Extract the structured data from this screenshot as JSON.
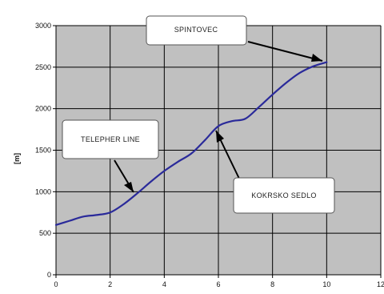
{
  "chart_data": {
    "type": "line",
    "title": "",
    "xlabel": "",
    "ylabel": "[m]",
    "xlim": [
      0,
      12
    ],
    "ylim": [
      0,
      3000
    ],
    "x_ticks": [
      0,
      2,
      4,
      6,
      8,
      10,
      12
    ],
    "y_ticks": [
      0,
      500,
      1000,
      1500,
      2000,
      2500,
      3000
    ],
    "grid": true,
    "colors": {
      "plot_background": "#c0c0c0",
      "line": "#2a2a9a",
      "grid": "#000000"
    },
    "series": [
      {
        "x": [
          0,
          0.5,
          1,
          1.5,
          2,
          2.5,
          3,
          3.5,
          4,
          4.5,
          5,
          5.5,
          6,
          6.5,
          7,
          7.5,
          8,
          8.5,
          9,
          9.5,
          10
        ],
        "values": [
          600,
          650,
          700,
          720,
          750,
          850,
          980,
          1120,
          1250,
          1360,
          1460,
          1620,
          1790,
          1850,
          1880,
          2020,
          2170,
          2310,
          2430,
          2510,
          2560
        ]
      }
    ],
    "annotations": [
      {
        "text": "SPINTOVEC",
        "x": 10,
        "y": 2560
      },
      {
        "text": "TELEPHER LINE",
        "x": 3,
        "y": 980
      },
      {
        "text": "KOKRSKO SEDLO",
        "x": 6,
        "y": 1790
      }
    ]
  }
}
